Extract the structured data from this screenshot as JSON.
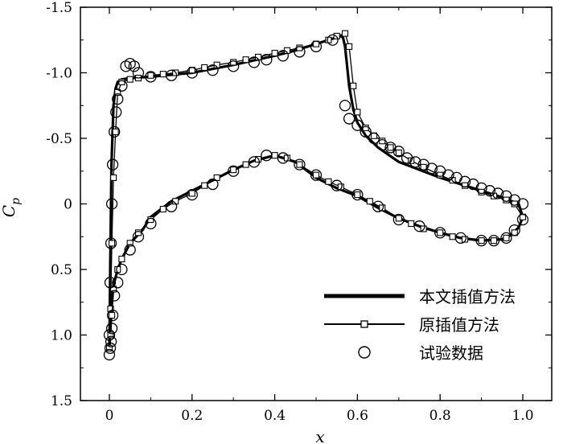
{
  "chart_data": {
    "type": "line",
    "xlabel": "x",
    "ylabel": {
      "main": "C",
      "sub": "p"
    },
    "xlim": [
      -0.07,
      1.07
    ],
    "ylim": [
      -1.5,
      1.5
    ],
    "y_inverted": true,
    "x_ticks": [
      0,
      0.2,
      0.4,
      0.6,
      0.8,
      1.0
    ],
    "x_tick_labels": [
      "0",
      "0.2",
      "0.4",
      "0.6",
      "0.8",
      "1.0"
    ],
    "y_ticks": [
      -1.5,
      -1.0,
      -0.5,
      0,
      0.5,
      1.0,
      1.5
    ],
    "y_tick_labels": [
      "-1.5",
      "-1.0",
      "-0.5",
      "0",
      "0.5",
      "1.0",
      "1.5"
    ],
    "grid": false,
    "legend_position": "bottom-right",
    "series": [
      {
        "name": "本文插值方法",
        "style": "thick-line",
        "upper": {
          "x": [
            0.0,
            0.002,
            0.005,
            0.01,
            0.015,
            0.02,
            0.03,
            0.05,
            0.1,
            0.2,
            0.3,
            0.4,
            0.45,
            0.5,
            0.55,
            0.56,
            0.565,
            0.57,
            0.575,
            0.58,
            0.59,
            0.6,
            0.62,
            0.65,
            0.7,
            0.8,
            0.9,
            0.95,
            0.99,
            1.0
          ],
          "y": [
            1.1,
            0.5,
            -0.3,
            -0.75,
            -0.88,
            -0.93,
            -0.95,
            -0.96,
            -0.97,
            -1.0,
            -1.06,
            -1.13,
            -1.17,
            -1.22,
            -1.27,
            -1.28,
            -1.27,
            -1.2,
            -1.05,
            -0.9,
            -0.72,
            -0.62,
            -0.52,
            -0.43,
            -0.32,
            -0.2,
            -0.1,
            -0.05,
            0.0,
            0.1
          ]
        },
        "lower": {
          "x": [
            0.0,
            0.005,
            0.01,
            0.02,
            0.03,
            0.05,
            0.08,
            0.1,
            0.15,
            0.2,
            0.25,
            0.3,
            0.35,
            0.4,
            0.45,
            0.5,
            0.55,
            0.6,
            0.65,
            0.7,
            0.75,
            0.8,
            0.85,
            0.9,
            0.95,
            0.97,
            0.99,
            1.0
          ],
          "y": [
            1.1,
            0.8,
            0.62,
            0.5,
            0.42,
            0.3,
            0.2,
            0.1,
            -0.02,
            -0.1,
            -0.18,
            -0.26,
            -0.33,
            -0.37,
            -0.32,
            -0.2,
            -0.12,
            -0.06,
            0.03,
            0.11,
            0.17,
            0.22,
            0.26,
            0.28,
            0.27,
            0.24,
            0.18,
            0.1
          ]
        }
      },
      {
        "name": "原插值方法",
        "style": "line-square",
        "upper": {
          "x": [
            0.0,
            0.003,
            0.006,
            0.01,
            0.015,
            0.02,
            0.03,
            0.05,
            0.07,
            0.1,
            0.13,
            0.16,
            0.2,
            0.23,
            0.26,
            0.3,
            0.33,
            0.36,
            0.4,
            0.43,
            0.46,
            0.5,
            0.53,
            0.55,
            0.57,
            0.58,
            0.59,
            0.6,
            0.62,
            0.64,
            0.66,
            0.68,
            0.7,
            0.73,
            0.76,
            0.8,
            0.83,
            0.86,
            0.9,
            0.93,
            0.96,
            0.98,
            1.0
          ],
          "y": [
            1.1,
            0.8,
            0.3,
            -0.2,
            -0.55,
            -0.85,
            -0.93,
            -0.95,
            -0.96,
            -0.98,
            -0.99,
            -1.0,
            -1.02,
            -1.04,
            -1.06,
            -1.08,
            -1.1,
            -1.12,
            -1.15,
            -1.17,
            -1.19,
            -1.22,
            -1.25,
            -1.28,
            -1.3,
            -1.2,
            -0.9,
            -0.7,
            -0.58,
            -0.52,
            -0.48,
            -0.43,
            -0.39,
            -0.33,
            -0.28,
            -0.22,
            -0.18,
            -0.14,
            -0.09,
            -0.06,
            -0.03,
            0.0,
            0.1
          ]
        },
        "lower": {
          "x": [
            0.003,
            0.006,
            0.01,
            0.02,
            0.03,
            0.05,
            0.07,
            0.1,
            0.13,
            0.16,
            0.2,
            0.23,
            0.26,
            0.3,
            0.33,
            0.36,
            0.4,
            0.43,
            0.46,
            0.5,
            0.53,
            0.56,
            0.6,
            0.63,
            0.66,
            0.7,
            0.73,
            0.76,
            0.8,
            0.83,
            0.86,
            0.9,
            0.93,
            0.96,
            0.98
          ],
          "y": [
            1.0,
            0.85,
            0.65,
            0.5,
            0.42,
            0.3,
            0.22,
            0.12,
            0.04,
            -0.02,
            -0.08,
            -0.14,
            -0.2,
            -0.26,
            -0.3,
            -0.34,
            -0.37,
            -0.35,
            -0.3,
            -0.22,
            -0.17,
            -0.13,
            -0.07,
            -0.02,
            0.03,
            0.11,
            0.15,
            0.19,
            0.22,
            0.25,
            0.27,
            0.28,
            0.28,
            0.26,
            0.22
          ]
        }
      },
      {
        "name": "试验数据",
        "style": "circle-marker",
        "upper": {
          "x": [
            0.0,
            0.002,
            0.004,
            0.006,
            0.008,
            0.012,
            0.016,
            0.02,
            0.03,
            0.04,
            0.05,
            0.06,
            0.07,
            0.1,
            0.15,
            0.2,
            0.25,
            0.3,
            0.35,
            0.38,
            0.42,
            0.46,
            0.5,
            0.54,
            0.57,
            0.58,
            0.6,
            0.62,
            0.64,
            0.66,
            0.68,
            0.7,
            0.72,
            0.74,
            0.76,
            0.78,
            0.8,
            0.82,
            0.84,
            0.86,
            0.88,
            0.9,
            0.92,
            0.94,
            0.96,
            0.98,
            1.0
          ],
          "y": [
            1.0,
            0.6,
            0.3,
            0.0,
            -0.3,
            -0.55,
            -0.7,
            -0.8,
            -0.9,
            -1.05,
            -1.07,
            -1.05,
            -1.0,
            -0.97,
            -0.98,
            -1.0,
            -1.02,
            -1.05,
            -1.08,
            -1.1,
            -1.13,
            -1.16,
            -1.2,
            -1.25,
            -0.75,
            -0.65,
            -0.6,
            -0.55,
            -0.5,
            -0.45,
            -0.43,
            -0.4,
            -0.35,
            -0.32,
            -0.3,
            -0.27,
            -0.25,
            -0.22,
            -0.2,
            -0.17,
            -0.15,
            -0.12,
            -0.1,
            -0.08,
            -0.06,
            -0.03,
            0.0
          ]
        },
        "lower": {
          "x": [
            0.0,
            0.002,
            0.004,
            0.006,
            0.008,
            0.012,
            0.02,
            0.03,
            0.05,
            0.07,
            0.1,
            0.15,
            0.2,
            0.25,
            0.3,
            0.35,
            0.38,
            0.42,
            0.46,
            0.5,
            0.55,
            0.6,
            0.65,
            0.7,
            0.75,
            0.8,
            0.85,
            0.9,
            0.93,
            0.96,
            0.98,
            1.0
          ],
          "y": [
            1.15,
            1.1,
            1.05,
            0.95,
            0.85,
            0.7,
            0.6,
            0.5,
            0.35,
            0.25,
            0.15,
            0.02,
            -0.07,
            -0.15,
            -0.25,
            -0.32,
            -0.37,
            -0.35,
            -0.3,
            -0.22,
            -0.14,
            -0.07,
            0.02,
            0.12,
            0.17,
            0.22,
            0.26,
            0.28,
            0.28,
            0.26,
            0.2,
            0.12
          ]
        }
      }
    ]
  }
}
